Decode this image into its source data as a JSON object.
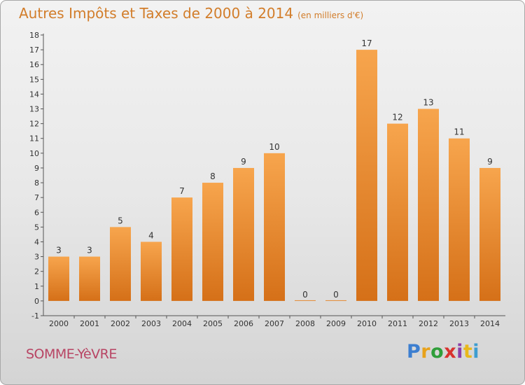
{
  "header": {
    "title": "Autres Impôts et Taxes de 2000 à 2014",
    "unit": "(en milliers d'€)"
  },
  "footer": {
    "commune": "SOMME-YèVRE",
    "brand": "Proxiti"
  },
  "colors": {
    "bar_top": "#f7a54d",
    "bar_bottom": "#d57018",
    "title": "#d27d2a",
    "commune": "#b84564"
  },
  "chart_data": {
    "type": "bar",
    "title": "Autres Impôts et Taxes de 2000 à 2014",
    "subtitle": "(en milliers d'€)",
    "xlabel": "",
    "ylabel": "",
    "categories": [
      "2000",
      "2001",
      "2002",
      "2003",
      "2004",
      "2005",
      "2006",
      "2007",
      "2008",
      "2009",
      "2010",
      "2011",
      "2012",
      "2013",
      "2014"
    ],
    "values": [
      3,
      3,
      5,
      4,
      7,
      8,
      9,
      10,
      0,
      0,
      17,
      12,
      13,
      11,
      9
    ],
    "data_labels": [
      "3",
      "3",
      "5",
      "4",
      "7",
      "8",
      "9",
      "10",
      "0",
      "0",
      "17",
      "12",
      "13",
      "11",
      "9"
    ],
    "yticks": [
      "-1",
      "0",
      "1",
      "2",
      "3",
      "4",
      "5",
      "6",
      "7",
      "8",
      "9",
      "10",
      "11",
      "12",
      "13",
      "14",
      "15",
      "16",
      "17",
      "18"
    ],
    "ylim": [
      -1,
      18
    ],
    "grid": false,
    "legend": "none"
  }
}
